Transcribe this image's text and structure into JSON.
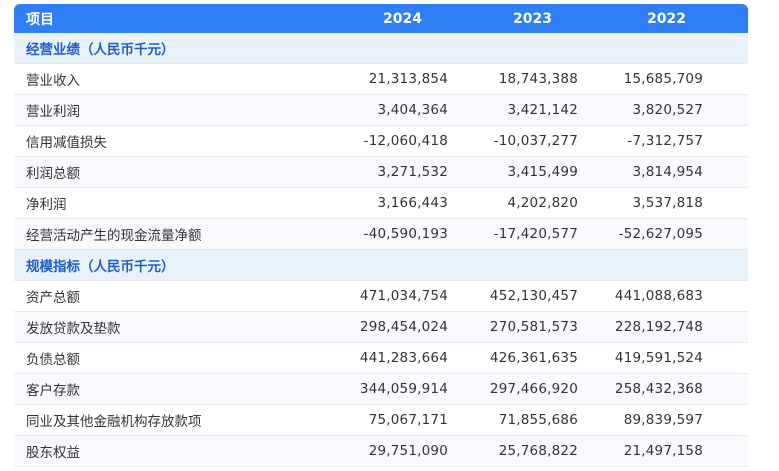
{
  "header": {
    "label": "项目",
    "years": [
      "2024",
      "2023",
      "2022"
    ]
  },
  "sections": [
    {
      "title": "经营业绩（人民币千元）",
      "rows": [
        {
          "label": "营业收入",
          "values": [
            "21,313,854",
            "18,743,388",
            "15,685,709"
          ]
        },
        {
          "label": "营业利润",
          "values": [
            "3,404,364",
            "3,421,142",
            "3,820,527"
          ]
        },
        {
          "label": "信用减值损失",
          "values": [
            "-12,060,418",
            "-10,037,277",
            "-7,312,757"
          ]
        },
        {
          "label": "利润总额",
          "values": [
            "3,271,532",
            "3,415,499",
            "3,814,954"
          ]
        },
        {
          "label": "净利润",
          "values": [
            "3,166,443",
            "4,202,820",
            "3,537,818"
          ]
        },
        {
          "label": "经营活动产生的现金流量净额",
          "values": [
            "-40,590,193",
            "-17,420,577",
            "-52,627,095"
          ]
        }
      ]
    },
    {
      "title": "规模指标（人民币千元）",
      "rows": [
        {
          "label": "资产总额",
          "values": [
            "471,034,754",
            "452,130,457",
            "441,088,683"
          ]
        },
        {
          "label": "发放贷款及垫款",
          "values": [
            "298,454,024",
            "270,581,573",
            "228,192,748"
          ]
        },
        {
          "label": "负债总额",
          "values": [
            "441,283,664",
            "426,361,635",
            "419,591,524"
          ]
        },
        {
          "label": "客户存款",
          "values": [
            "344,059,914",
            "297,466,920",
            "258,432,368"
          ]
        },
        {
          "label": "同业及其他金融机构存放款项",
          "values": [
            "75,067,171",
            "71,855,686",
            "89,839,597"
          ]
        },
        {
          "label": "股东权益",
          "values": [
            "29,751,090",
            "25,768,822",
            "21,497,158"
          ]
        }
      ]
    }
  ]
}
